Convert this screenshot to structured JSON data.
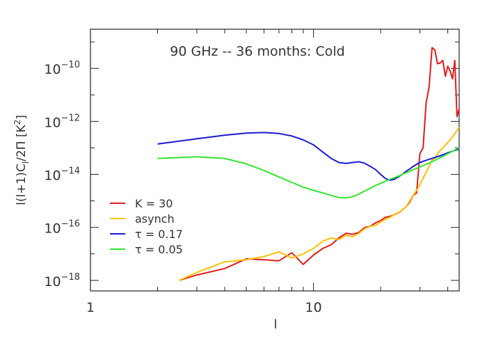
{
  "chart_data": {
    "type": "line",
    "title": "90 GHz -- 36 months:  Cold",
    "xlabel": "l",
    "ylabel": "l(l+1)C_l/2π [K²]",
    "ylabel_parts": {
      "pre": "l(l+1)C",
      "sub": "l",
      "post": "/2Π [K",
      "sup": "2",
      "end": "]"
    },
    "x_scale": "log",
    "y_scale": "log",
    "xlim": [
      1,
      45
    ],
    "ylim": [
      4e-19,
      3e-09
    ],
    "x_ticks": [
      {
        "value": 1,
        "label": "1"
      },
      {
        "value": 10,
        "label": "10"
      }
    ],
    "y_ticks": [
      {
        "value": 1e-18,
        "base": "10",
        "exp": "−18"
      },
      {
        "value": 1e-16,
        "base": "10",
        "exp": "−16"
      },
      {
        "value": 1e-14,
        "base": "10",
        "exp": "−14"
      },
      {
        "value": 1e-12,
        "base": "10",
        "exp": "−12"
      },
      {
        "value": 1e-10,
        "base": "10",
        "exp": "−10"
      }
    ],
    "legend_position": "bottom-left",
    "series": [
      {
        "name": "K = 30",
        "color": "#e31a1c",
        "x": [
          2.5,
          3,
          4,
          5,
          6,
          7,
          8,
          9,
          10,
          11,
          12,
          13,
          14,
          15,
          16,
          17,
          18,
          19,
          20,
          21,
          22,
          23,
          24,
          25,
          26,
          27,
          28,
          29,
          30,
          31,
          32,
          33,
          34,
          35,
          36,
          37,
          38,
          39,
          40,
          41,
          42,
          43,
          44,
          45
        ],
        "y": [
          1e-18,
          1.6e-18,
          2.8e-18,
          6.5e-18,
          6e-18,
          5.5e-18,
          1.1e-17,
          4e-18,
          9e-18,
          1.6e-17,
          2.2e-17,
          4e-17,
          6e-17,
          5.5e-17,
          6.5e-17,
          1e-16,
          1.1e-16,
          1.5e-16,
          1.8e-16,
          2.4e-16,
          2.6e-16,
          3e-16,
          3.5e-16,
          4.5e-16,
          6e-16,
          9e-16,
          1.6e-15,
          2e-15,
          6e-14,
          1e-13,
          5e-12,
          2e-11,
          6e-10,
          5e-10,
          1.5e-10,
          1.6e-10,
          2e-10,
          5e-11,
          1.2e-10,
          8e-11,
          4e-11,
          2e-10,
          1.5e-12,
          3e-12
        ]
      },
      {
        "name": "asynch",
        "color": "#ffc000",
        "x": [
          2.5,
          3,
          4,
          5,
          6,
          7,
          8,
          9,
          10,
          11,
          12,
          13,
          14,
          15,
          16,
          17,
          18,
          19,
          20,
          21,
          22,
          23,
          24,
          25,
          26,
          27,
          28,
          29,
          30,
          31,
          32,
          33,
          34,
          35,
          36,
          37,
          38,
          39,
          40,
          41,
          42,
          43,
          44,
          45
        ],
        "y": [
          1e-18,
          2e-18,
          5e-18,
          6e-18,
          8e-18,
          1.2e-17,
          7e-18,
          1e-17,
          1.6e-17,
          3e-17,
          4e-17,
          3.5e-17,
          5e-17,
          4.5e-17,
          6e-17,
          9e-17,
          1.1e-16,
          1.2e-16,
          1.6e-16,
          2e-16,
          2.4e-16,
          3e-16,
          3.6e-16,
          4.5e-16,
          6e-16,
          1e-15,
          1.6e-15,
          2.5e-15,
          4e-15,
          7e-15,
          1.2e-14,
          2e-14,
          3.5e-14,
          4e-14,
          6e-14,
          8e-14,
          1e-13,
          1.3e-13,
          1.6e-13,
          2e-13,
          2.6e-13,
          3.5e-13,
          4.5e-13,
          6e-13
        ]
      },
      {
        "name": "τ = 0.17",
        "color": "#1a1ad6",
        "x": [
          2,
          3,
          4,
          5,
          6,
          7,
          8,
          9,
          10,
          11,
          12,
          13,
          14,
          15,
          16,
          17,
          18,
          19,
          20,
          21,
          22,
          23,
          24,
          25,
          26,
          27,
          28,
          29,
          30,
          32,
          34,
          36,
          38,
          40,
          42,
          45
        ],
        "y": [
          1.4e-13,
          2.2e-13,
          3e-13,
          3.6e-13,
          3.8e-13,
          3.5e-13,
          2.8e-13,
          2e-13,
          1.3e-13,
          7e-14,
          4e-14,
          2.8e-14,
          2.6e-14,
          2.8e-14,
          3e-14,
          2.6e-14,
          2e-14,
          1.5e-14,
          1e-14,
          7e-15,
          6e-15,
          6.5e-15,
          8e-15,
          1e-14,
          1.3e-14,
          1.6e-14,
          2e-14,
          2.4e-14,
          2.8e-14,
          3.4e-14,
          4e-14,
          4.7e-14,
          5.5e-14,
          6.5e-14,
          7.5e-14,
          9e-14
        ]
      },
      {
        "name": "τ = 0.05",
        "color": "#2ee62e",
        "x": [
          2,
          3,
          4,
          5,
          6,
          7,
          8,
          9,
          10,
          11,
          12,
          13,
          14,
          15,
          16,
          17,
          18,
          19,
          20,
          21,
          22,
          23,
          24,
          25,
          26,
          27,
          28,
          29,
          30,
          32,
          34,
          36,
          38,
          40,
          42,
          45
        ],
        "y": [
          4e-14,
          4.6e-14,
          4e-14,
          2.5e-14,
          1.4e-14,
          8e-15,
          5e-15,
          3.3e-15,
          2.5e-15,
          2e-15,
          1.6e-15,
          1.35e-15,
          1.3e-15,
          1.45e-15,
          1.8e-15,
          2.4e-15,
          3e-15,
          3.8e-15,
          4.6e-15,
          5.5e-15,
          6.5e-15,
          7.5e-15,
          8.5e-15,
          1e-14,
          1.15e-14,
          1.3e-14,
          1.5e-14,
          1.7e-14,
          1.9e-14,
          2.4e-14,
          3e-14,
          3.8e-14,
          4.8e-14,
          6e-14,
          7.5e-14,
          1e-13
        ]
      }
    ]
  }
}
